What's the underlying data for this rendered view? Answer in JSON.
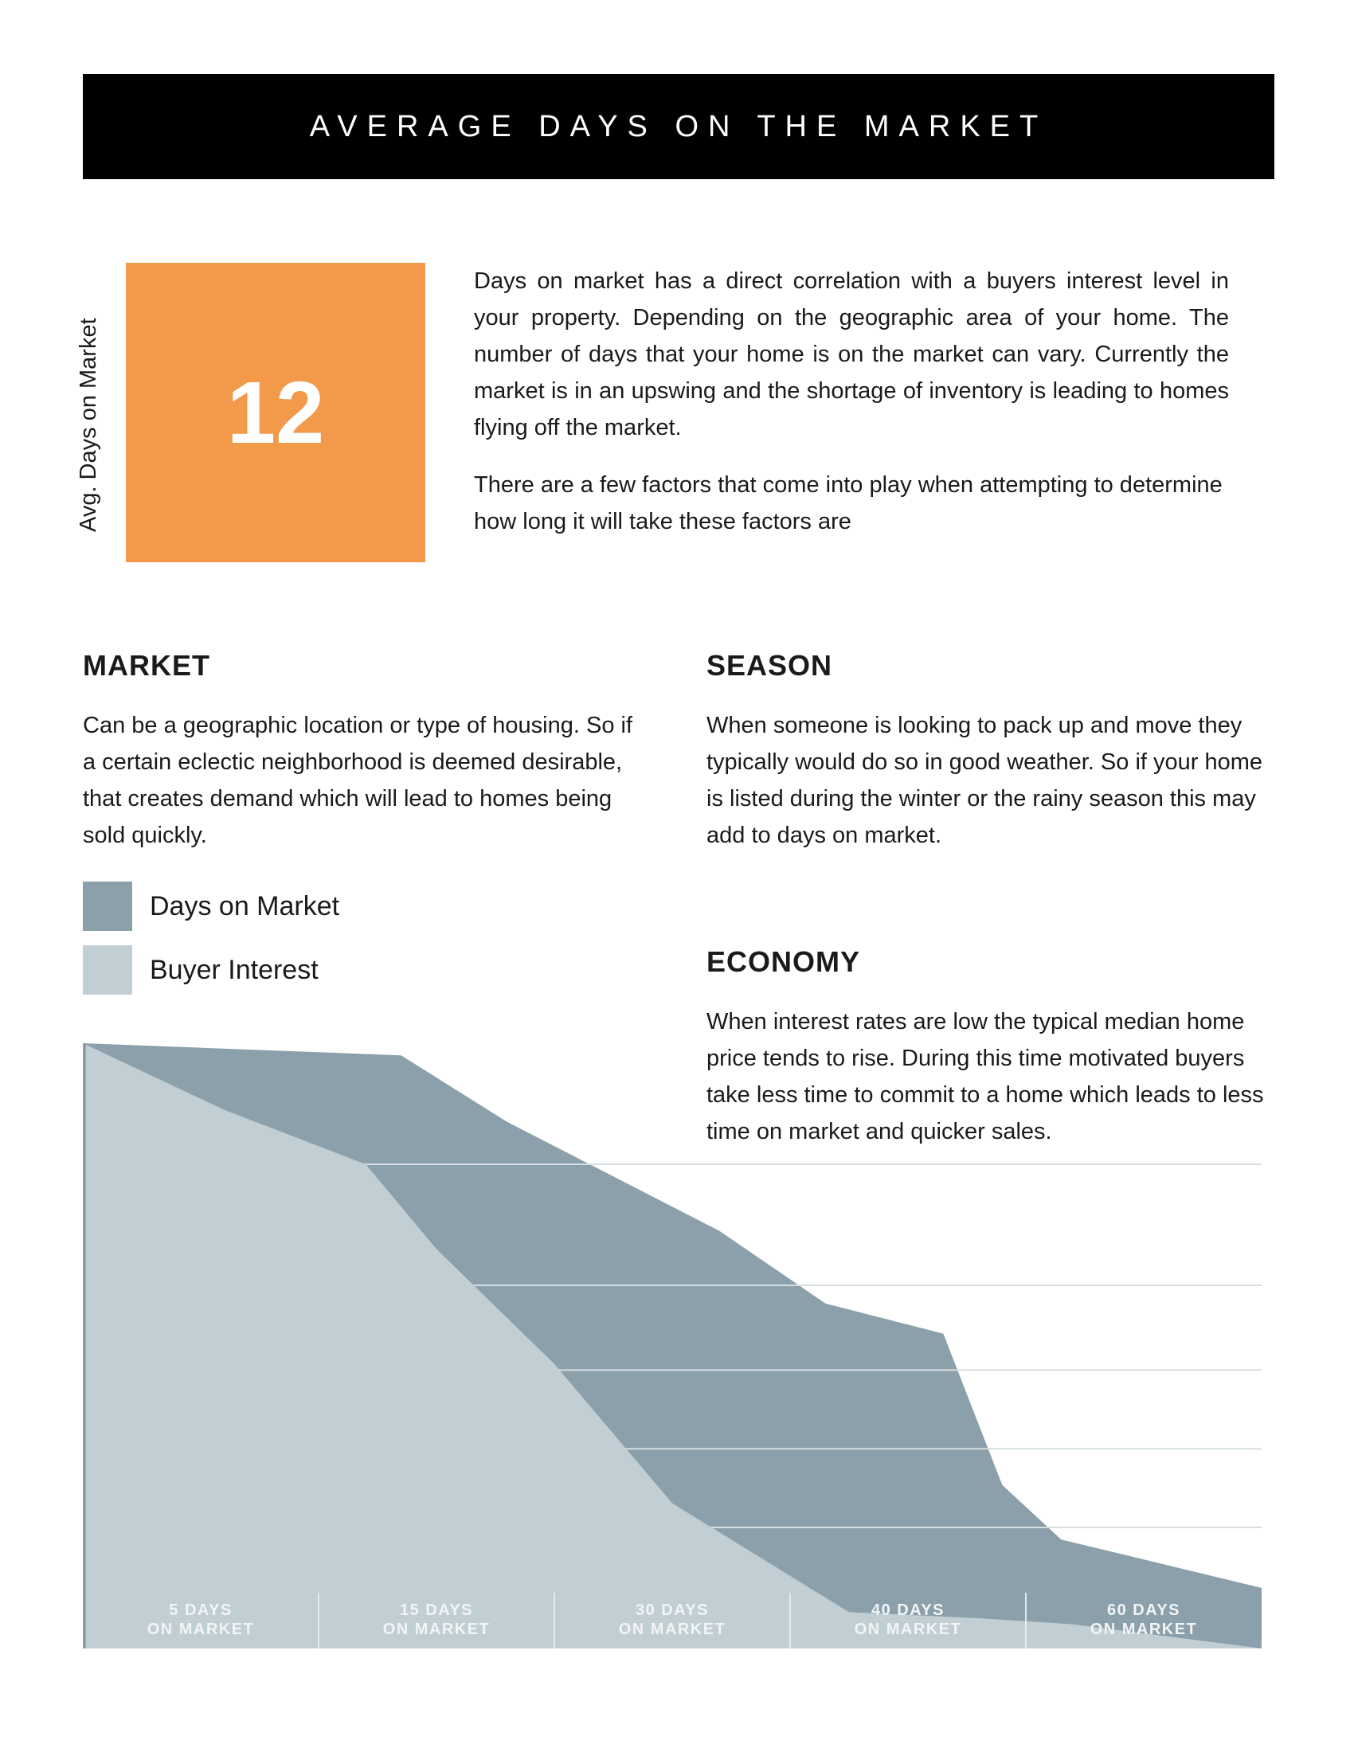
{
  "header": {
    "title": "AVERAGE DAYS ON THE MARKET"
  },
  "stat": {
    "label": "Avg. Days on Market",
    "value": "12",
    "color": "#F2994A"
  },
  "intro": {
    "p1": "Days on market has a direct correlation with a buyers interest level in your property. Depending on the geographic area of your home. The number of days that your home is on the market can vary. Currently the market is in an upswing and the shortage of inventory is leading to homes flying off the market.",
    "p2": "There are a few factors that come into play when attempting to determine how long it will take these factors are"
  },
  "sections": {
    "market": {
      "title": "MARKET",
      "body": "Can be a geographic location or type of housing. So if a certain eclectic neighborhood is deemed desirable, that creates demand which will lead to homes being sold quickly."
    },
    "season": {
      "title": "SEASON",
      "body": "When someone is looking to pack up and move they typically would do so in good weather. So if your home is listed during the winter or the rainy season this may add to days on market."
    },
    "economy": {
      "title": "ECONOMY",
      "body": "When interest rates are low the typical median home price tends to rise. During this time motivated buyers take less time to commit to a home which leads to less time on market and quicker sales."
    }
  },
  "chart_data": {
    "type": "area",
    "categories": [
      "5 DAYS\nON MARKET",
      "15 DAYS\nON MARKET",
      "30 DAYS\nON MARKET",
      "40 DAYS\nON MARKET",
      "60 DAYS\nON MARKET"
    ],
    "series": [
      {
        "name": "Days on Market",
        "color": "#8BA0AA",
        "x": [
          0,
          0.27,
          0.36,
          0.54,
          0.63,
          0.73,
          0.78,
          0.83,
          1.0
        ],
        "y": [
          1.0,
          0.98,
          0.87,
          0.69,
          0.57,
          0.52,
          0.27,
          0.18,
          0.1
        ]
      },
      {
        "name": "Buyer Interest",
        "color": "#C1CED4",
        "x": [
          0,
          0.12,
          0.24,
          0.3,
          0.4,
          0.5,
          0.6,
          0.65,
          0.76,
          0.84,
          1.0
        ],
        "y": [
          1.0,
          0.89,
          0.8,
          0.66,
          0.47,
          0.24,
          0.12,
          0.06,
          0.05,
          0.04,
          0.0
        ]
      }
    ],
    "ylim": [
      0,
      1
    ],
    "grid": true,
    "legend": "top-left"
  }
}
